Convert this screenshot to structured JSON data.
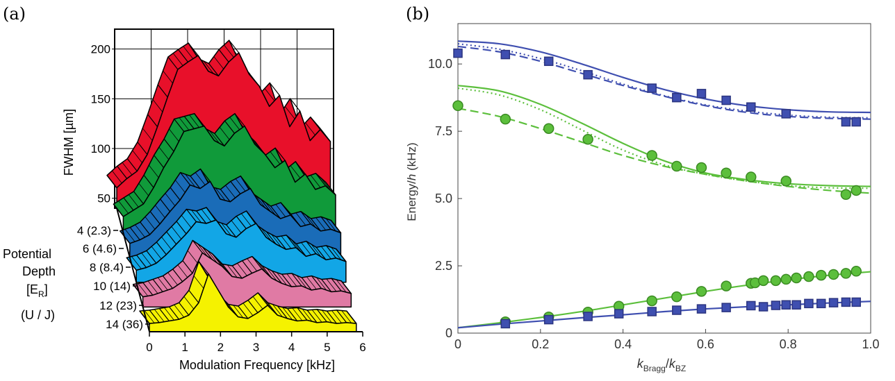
{
  "panels": {
    "a_label": "(a)",
    "b_label": "(b)"
  },
  "chart_data": [
    {
      "type": "area",
      "panel": "(a)",
      "title": "",
      "xlabel": "Modulation Frequency [kHz]",
      "ylabel": "FWHM [µm]",
      "xlim": [
        0,
        6
      ],
      "ylim": [
        40,
        220
      ],
      "x_ticks": [
        "0",
        "1",
        "2",
        "3",
        "4",
        "5",
        "6"
      ],
      "y_ticks": [
        "50",
        "100",
        "150",
        "200"
      ],
      "depth_axis_label": [
        "Potential",
        "Depth",
        "[E",
        "R",
        "]",
        "(U / J)"
      ],
      "depth_ticks": [
        "4 (2.3)",
        "6 (4.6)",
        "8 (8.4)",
        "10 (14)",
        "12 (23)",
        "14 (36)"
      ],
      "x": [
        0,
        0.25,
        0.5,
        0.75,
        1.0,
        1.25,
        1.5,
        1.75,
        2.0,
        2.25,
        2.5,
        2.75,
        3.0,
        3.25,
        3.5,
        3.75,
        4.0,
        4.25,
        4.5,
        4.75,
        5.0,
        5.25
      ],
      "series": [
        {
          "name": "4 (2.3)",
          "color": "#e8102a",
          "values": [
            62,
            72,
            80,
            98,
            128,
            160,
            190,
            198,
            205,
            188,
            183,
            198,
            208,
            185,
            172,
            150,
            162,
            128,
            145,
            113,
            125,
            112
          ]
        },
        {
          "name": "6 (4.6)",
          "color": "#109a3a",
          "values": [
            58,
            65,
            72,
            90,
            112,
            130,
            152,
            155,
            158,
            142,
            136,
            150,
            158,
            138,
            127,
            112,
            120,
            96,
            105,
            88,
            92,
            82
          ]
        },
        {
          "name": "8 (8.4)",
          "color": "#1a6cb8",
          "values": [
            56,
            60,
            66,
            78,
            92,
            105,
            122,
            118,
            126,
            106,
            103,
            112,
            118,
            100,
            92,
            84,
            88,
            75,
            78,
            70,
            72,
            68
          ]
        },
        {
          "name": "10 (14)",
          "color": "#12a6e6",
          "values": [
            54,
            57,
            62,
            72,
            84,
            96,
            110,
            108,
            112,
            96,
            92,
            102,
            108,
            92,
            84,
            78,
            80,
            70,
            73,
            66,
            68,
            64
          ]
        },
        {
          "name": "12 (23)",
          "color": "#e07aa4",
          "values": [
            52,
            54,
            58,
            62,
            70,
            80,
            104,
            96,
            88,
            76,
            74,
            80,
            85,
            74,
            68,
            64,
            65,
            60,
            62,
            58,
            59,
            56
          ]
        },
        {
          "name": "14 (36)",
          "color": "#f5f200",
          "values": [
            50,
            51,
            53,
            55,
            60,
            75,
            110,
            90,
            70,
            58,
            56,
            63,
            72,
            60,
            56,
            53,
            54,
            51,
            52,
            50,
            51,
            50
          ]
        }
      ]
    },
    {
      "type": "scatter",
      "panel": "(b)",
      "title": "",
      "xlabel": "k_Bragg / k_BZ",
      "ylabel": "Energy/h (kHz)",
      "xlim": [
        0,
        1.0
      ],
      "ylim": [
        0,
        11.5
      ],
      "x_ticks": [
        "0",
        "0.2",
        "0.4",
        "0.6",
        "0.8",
        "1.0"
      ],
      "y_ticks": [
        "0",
        "2.5",
        "5.0",
        "7.5",
        "10.0"
      ],
      "series": [
        {
          "name": "upper band (squares)",
          "color": "#3f4fb0",
          "marker": "square",
          "points": [
            [
              0.0,
              10.4
            ],
            [
              0.115,
              10.35
            ],
            [
              0.22,
              10.1
            ],
            [
              0.315,
              9.6
            ],
            [
              0.47,
              9.1
            ],
            [
              0.53,
              8.75
            ],
            [
              0.59,
              8.9
            ],
            [
              0.65,
              8.65
            ],
            [
              0.71,
              8.4
            ],
            [
              0.795,
              8.15
            ],
            [
              0.94,
              7.85
            ],
            [
              0.965,
              7.85
            ]
          ]
        },
        {
          "name": "upper band (circles)",
          "color": "#5cbf3c",
          "marker": "circle",
          "points": [
            [
              0.0,
              8.45
            ],
            [
              0.115,
              7.95
            ],
            [
              0.22,
              7.6
            ],
            [
              0.315,
              7.2
            ],
            [
              0.47,
              6.6
            ],
            [
              0.53,
              6.2
            ],
            [
              0.59,
              6.15
            ],
            [
              0.65,
              5.95
            ],
            [
              0.71,
              5.8
            ],
            [
              0.795,
              5.65
            ],
            [
              0.94,
              5.15
            ],
            [
              0.965,
              5.3
            ]
          ]
        },
        {
          "name": "lower band (circles)",
          "color": "#5cbf3c",
          "marker": "circle",
          "points": [
            [
              0.115,
              0.42
            ],
            [
              0.22,
              0.6
            ],
            [
              0.315,
              0.78
            ],
            [
              0.39,
              1.0
            ],
            [
              0.47,
              1.2
            ],
            [
              0.53,
              1.35
            ],
            [
              0.59,
              1.55
            ],
            [
              0.65,
              1.75
            ],
            [
              0.71,
              1.85
            ],
            [
              0.72,
              1.87
            ],
            [
              0.74,
              1.95
            ],
            [
              0.77,
              1.95
            ],
            [
              0.795,
              2.0
            ],
            [
              0.82,
              2.05
            ],
            [
              0.85,
              2.1
            ],
            [
              0.88,
              2.15
            ],
            [
              0.91,
              2.18
            ],
            [
              0.94,
              2.22
            ],
            [
              0.965,
              2.3
            ]
          ]
        },
        {
          "name": "lower band (squares)",
          "color": "#3f4fb0",
          "marker": "square",
          "points": [
            [
              0.115,
              0.35
            ],
            [
              0.22,
              0.5
            ],
            [
              0.315,
              0.62
            ],
            [
              0.39,
              0.72
            ],
            [
              0.47,
              0.8
            ],
            [
              0.53,
              0.85
            ],
            [
              0.59,
              0.9
            ],
            [
              0.65,
              0.95
            ],
            [
              0.71,
              1.02
            ],
            [
              0.74,
              0.98
            ],
            [
              0.77,
              1.03
            ],
            [
              0.795,
              1.05
            ],
            [
              0.82,
              1.05
            ],
            [
              0.85,
              1.1
            ],
            [
              0.88,
              1.1
            ],
            [
              0.91,
              1.13
            ],
            [
              0.94,
              1.15
            ],
            [
              0.965,
              1.15
            ]
          ]
        }
      ],
      "curves": [
        {
          "name": "blue upper solid",
          "color": "#3f4fb0",
          "style": "solid",
          "x": [
            0,
            0.1,
            0.2,
            0.3,
            0.4,
            0.5,
            0.6,
            0.7,
            0.8,
            0.9,
            1.0
          ],
          "y": [
            10.85,
            10.75,
            10.45,
            10.0,
            9.5,
            9.05,
            8.7,
            8.45,
            8.3,
            8.22,
            8.2
          ]
        },
        {
          "name": "blue upper dotted",
          "color": "#3f4fb0",
          "style": "dotted",
          "x": [
            0,
            0.1,
            0.2,
            0.3,
            0.4,
            0.5,
            0.6,
            0.7,
            0.8,
            0.9,
            1.0
          ],
          "y": [
            10.75,
            10.55,
            10.2,
            9.75,
            9.25,
            8.82,
            8.48,
            8.25,
            8.1,
            8.02,
            8.0
          ]
        },
        {
          "name": "blue upper dashed",
          "color": "#3f4fb0",
          "style": "dashed",
          "x": [
            0,
            0.1,
            0.2,
            0.3,
            0.4,
            0.5,
            0.6,
            0.7,
            0.8,
            0.9,
            1.0
          ],
          "y": [
            10.65,
            10.45,
            10.1,
            9.65,
            9.2,
            8.8,
            8.45,
            8.2,
            8.05,
            7.98,
            7.95
          ]
        },
        {
          "name": "green upper solid",
          "color": "#5cbf3c",
          "style": "solid",
          "x": [
            0,
            0.1,
            0.2,
            0.3,
            0.4,
            0.5,
            0.6,
            0.7,
            0.8,
            0.9,
            1.0
          ],
          "y": [
            9.2,
            9.0,
            8.5,
            7.8,
            7.05,
            6.4,
            5.95,
            5.7,
            5.55,
            5.48,
            5.45
          ]
        },
        {
          "name": "green upper dotted",
          "color": "#5cbf3c",
          "style": "dotted",
          "x": [
            0,
            0.1,
            0.2,
            0.3,
            0.4,
            0.5,
            0.6,
            0.7,
            0.8,
            0.9,
            1.0
          ],
          "y": [
            9.1,
            8.85,
            8.3,
            7.55,
            6.8,
            6.25,
            5.9,
            5.65,
            5.48,
            5.4,
            5.38
          ]
        },
        {
          "name": "green upper dashed",
          "color": "#5cbf3c",
          "style": "dashed",
          "x": [
            0,
            0.1,
            0.2,
            0.3,
            0.4,
            0.5,
            0.6,
            0.7,
            0.8,
            0.9,
            1.0
          ],
          "y": [
            8.35,
            8.05,
            7.6,
            7.1,
            6.6,
            6.2,
            5.9,
            5.65,
            5.45,
            5.3,
            5.2
          ]
        },
        {
          "name": "green lower solid",
          "color": "#5cbf3c",
          "style": "solid",
          "x": [
            0,
            0.1,
            0.2,
            0.3,
            0.4,
            0.5,
            0.6,
            0.7,
            0.8,
            0.9,
            1.0
          ],
          "y": [
            0.2,
            0.38,
            0.58,
            0.8,
            1.05,
            1.3,
            1.55,
            1.78,
            1.98,
            2.15,
            2.28
          ]
        },
        {
          "name": "blue lower solid",
          "color": "#3f4fb0",
          "style": "solid",
          "x": [
            0,
            0.1,
            0.2,
            0.3,
            0.4,
            0.5,
            0.6,
            0.7,
            0.8,
            0.9,
            1.0
          ],
          "y": [
            0.2,
            0.33,
            0.45,
            0.57,
            0.68,
            0.8,
            0.9,
            0.98,
            1.05,
            1.12,
            1.18
          ]
        }
      ]
    }
  ]
}
